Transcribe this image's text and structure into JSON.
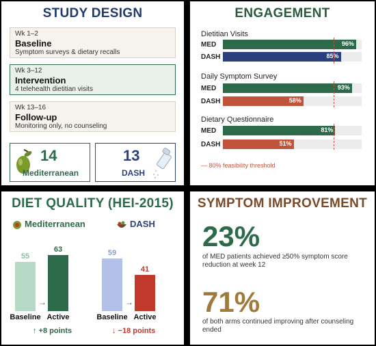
{
  "study_design": {
    "title": "STUDY DESIGN",
    "phases": [
      {
        "week": "Wk 1–2",
        "name": "Baseline",
        "desc": "Symptom surveys & dietary recalls"
      },
      {
        "week": "Wk 3–12",
        "name": "Intervention",
        "desc": "4 telehealth dietitian visits"
      },
      {
        "week": "Wk 13–16",
        "name": "Follow-up",
        "desc": "Monitoring only, no counseling"
      }
    ],
    "groups": [
      {
        "count": "14",
        "label": "Mediterranean",
        "icon": "olive-icon"
      },
      {
        "count": "13",
        "label": "DASH",
        "icon": "salt-shaker-icon"
      }
    ]
  },
  "engagement": {
    "title": "ENGAGEMENT",
    "threshold_note": "— 80% feasibility threshold"
  },
  "diet_quality": {
    "title": "DIET QUALITY (HEI-2015)",
    "legend": [
      {
        "label": "Mediterranean",
        "icon": "olive-bowl-icon"
      },
      {
        "label": "DASH",
        "icon": "salad-bowl-icon"
      }
    ],
    "deltas": [
      "↑ +8 points",
      "↓ −18 points"
    ]
  },
  "symptom": {
    "title": "SYMPTOM IMPROVEMENT",
    "stats": [
      {
        "value": "23%",
        "text": "of MED patients achieved ≥50% symptom score reduction at week 12"
      },
      {
        "value": "71%",
        "text": "of both arms continued improving after counseling ended"
      }
    ]
  },
  "colors": {
    "med": "#2d6a4a",
    "dash": "#2a3f7e",
    "rust": "#c0533a",
    "med_light": "#b6dac5",
    "dash_light": "#b3c1e8",
    "dash_active": "#c0392b",
    "gold": "#a07a3a",
    "brown": "#7a4a2a"
  },
  "chart_data": [
    {
      "type": "bar",
      "title": "ENGAGEMENT",
      "categories": [
        "Dietitian Visits",
        "Daily Symptom Survey",
        "Dietary Questionnaire"
      ],
      "series": [
        {
          "name": "MED",
          "values": [
            96,
            93,
            81
          ]
        },
        {
          "name": "DASH",
          "values": [
            85,
            58,
            51
          ]
        }
      ],
      "ylim": [
        0,
        100
      ],
      "threshold": 80,
      "unit": "%"
    },
    {
      "type": "bar",
      "title": "DIET QUALITY (HEI-2015)",
      "categories": [
        "Baseline",
        "Active"
      ],
      "series": [
        {
          "name": "Mediterranean",
          "values": [
            55,
            63
          ]
        },
        {
          "name": "DASH",
          "values": [
            59,
            41
          ]
        }
      ],
      "ylim": [
        0,
        63
      ]
    }
  ]
}
